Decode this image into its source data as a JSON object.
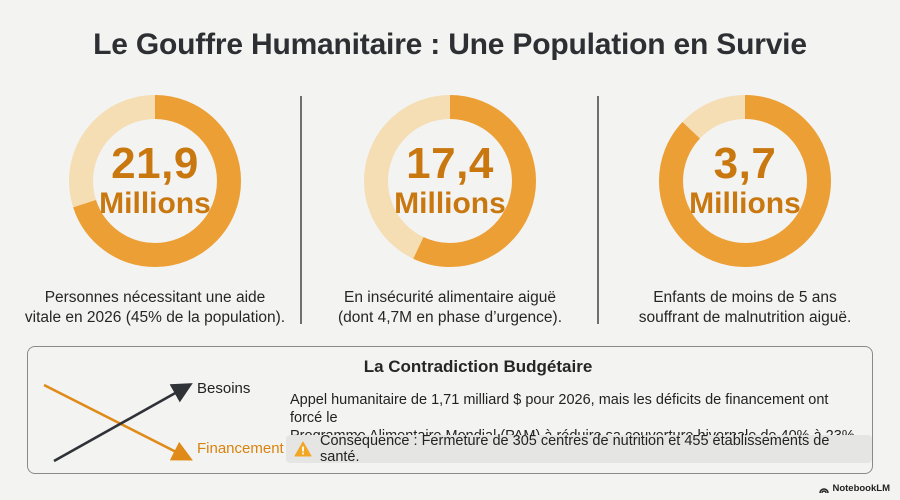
{
  "title": "Le Gouffre Humanitaire : Une Population en Survie",
  "colors": {
    "ring_track": "#f5ddb4",
    "ring_fill": "#ec9f35",
    "accent_text": "#c9770f",
    "financement": "#d9830f"
  },
  "stats": [
    {
      "value": "21,9",
      "unit": "Millions",
      "caption_line1": "Personnes nécessitant une aide",
      "caption_line2": "vitale en 2026 (45% de la population).",
      "fill_fraction": 0.7
    },
    {
      "value": "17,4",
      "unit": "Millions",
      "caption_line1": "En insécurité alimentaire aiguë",
      "caption_line2": "(dont 4,7M en phase d’urgence).",
      "fill_fraction": 0.57
    },
    {
      "value": "3,7",
      "unit": "Millions",
      "caption_line1": "Enfants de moins de 5 ans",
      "caption_line2": "souffrant de malnutrition aiguë.",
      "fill_fraction": 0.87
    }
  ],
  "budget": {
    "title": "La Contradiction Budgétaire",
    "besoins_label": "Besoins",
    "financement_label": "Financement",
    "text_line1": "Appel humanitaire de 1,71 milliard $ pour 2026, mais les déficits de financement ont forcé le",
    "text_line2": "Programme Alimentaire Mondial (PAM) à réduire sa couverture hivernale de 40% à 23%.",
    "consequence": "Conséquence : Fermeture de 305 centres de nutrition et 455 établissements de santé.",
    "warning_icon": "warning-icon"
  },
  "brand": "NotebookLM"
}
